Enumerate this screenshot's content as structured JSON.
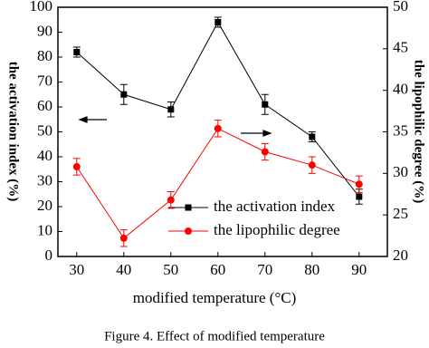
{
  "chart_data": {
    "type": "line",
    "xlabel": "modified temperature (°C)",
    "ylabel": "the activation index (%)",
    "y2label": "the lipophilic degree (%)",
    "caption": "Figure 4.    Effect of modified temperature",
    "x": [
      30,
      40,
      50,
      60,
      70,
      80,
      90
    ],
    "xlim": [
      26,
      96
    ],
    "xticks": [
      30,
      40,
      50,
      60,
      70,
      80,
      90
    ],
    "ylim": [
      0,
      100
    ],
    "yticks": [
      0,
      10,
      20,
      30,
      40,
      50,
      60,
      70,
      80,
      90,
      100
    ],
    "y2lim": [
      20,
      50
    ],
    "y2ticks": [
      20,
      25,
      30,
      35,
      40,
      45,
      50
    ],
    "series": [
      {
        "name": "the activation index",
        "color": "#000000",
        "marker": "square",
        "values": [
          82,
          65,
          59,
          94,
          61,
          48,
          24
        ],
        "errors": [
          2,
          4,
          3,
          2,
          4,
          2,
          3
        ]
      },
      {
        "name": "the lipophilic degree",
        "color": "#ff0000",
        "marker": "circle",
        "axis": "y2",
        "values": [
          30.8,
          22.2,
          26.8,
          35.4,
          32.6,
          31.0,
          28.7
        ],
        "errors": [
          1.0,
          1.0,
          1.0,
          1.0,
          1.0,
          1.0,
          1.0
        ]
      }
    ]
  }
}
